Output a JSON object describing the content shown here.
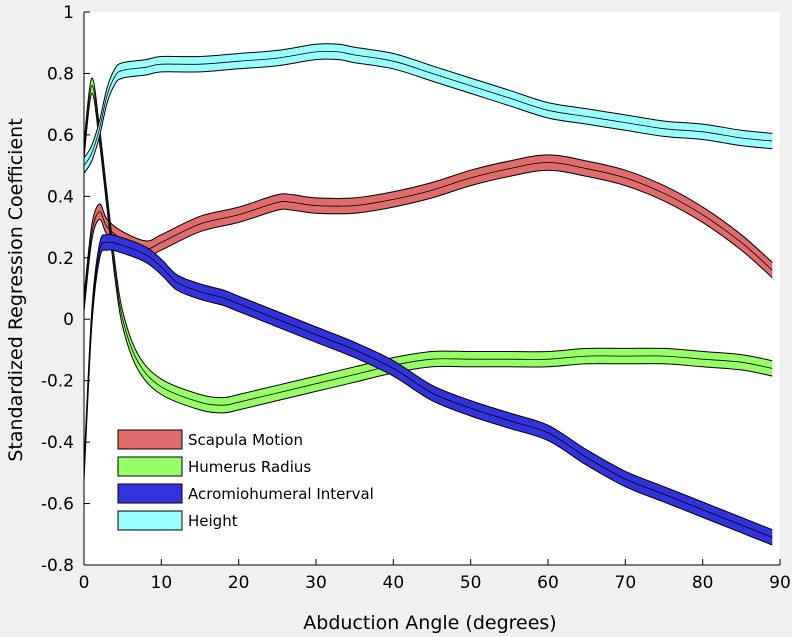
{
  "chart_data": {
    "type": "line",
    "title": "",
    "xlabel": "Abduction Angle (degrees)",
    "ylabel": "Standardized Regression Coefficient",
    "xlim": [
      0,
      90
    ],
    "ylim": [
      -0.8,
      1.0
    ],
    "xticks": [
      0,
      10,
      20,
      30,
      40,
      50,
      60,
      70,
      80,
      90
    ],
    "xtick_labels": [
      "0",
      "10",
      "20",
      "30",
      "40",
      "50",
      "60",
      "70",
      "80",
      "90"
    ],
    "yticks": [
      -0.8,
      -0.6,
      -0.4,
      -0.2,
      0,
      0.2,
      0.4,
      0.6,
      0.8,
      1.0
    ],
    "ytick_labels": [
      "-0.8",
      "-0.6",
      "-0.4",
      "-0.2",
      "0",
      "0.2",
      "0.4",
      "0.6",
      "0.8",
      "1"
    ],
    "grid": false,
    "legend_position": "bottom-left",
    "series": [
      {
        "name": "Scapula Motion",
        "color": "#e06c6c",
        "band_halfwidth": 0.025,
        "x": [
          0,
          1,
          2,
          3,
          5,
          8,
          10,
          15,
          20,
          25,
          27,
          30,
          35,
          40,
          45,
          50,
          55,
          60,
          65,
          70,
          75,
          80,
          85,
          89
        ],
        "y": [
          0.05,
          0.28,
          0.35,
          0.3,
          0.26,
          0.23,
          0.25,
          0.31,
          0.34,
          0.38,
          0.38,
          0.37,
          0.37,
          0.39,
          0.42,
          0.46,
          0.49,
          0.51,
          0.49,
          0.46,
          0.41,
          0.34,
          0.25,
          0.16
        ]
      },
      {
        "name": "Humerus Radius",
        "color": "#99ff66",
        "band_halfwidth": 0.025,
        "x": [
          0,
          1,
          2,
          3,
          4,
          5,
          7,
          10,
          15,
          18,
          20,
          25,
          30,
          35,
          40,
          45,
          50,
          55,
          60,
          65,
          70,
          75,
          80,
          85,
          89
        ],
        "y": [
          0.55,
          0.76,
          0.6,
          0.38,
          0.16,
          0.0,
          -0.14,
          -0.22,
          -0.27,
          -0.28,
          -0.27,
          -0.24,
          -0.21,
          -0.18,
          -0.15,
          -0.13,
          -0.13,
          -0.13,
          -0.13,
          -0.12,
          -0.12,
          -0.12,
          -0.13,
          -0.14,
          -0.16
        ]
      },
      {
        "name": "Acromiohumeral Interval",
        "color": "#3333dd",
        "band_halfwidth": 0.025,
        "x": [
          0,
          1,
          2,
          3,
          5,
          8,
          10,
          12,
          15,
          18,
          20,
          25,
          30,
          35,
          40,
          45,
          50,
          55,
          60,
          65,
          70,
          75,
          80,
          85,
          89
        ],
        "y": [
          -0.5,
          0.0,
          0.22,
          0.25,
          0.24,
          0.21,
          0.17,
          0.12,
          0.09,
          0.07,
          0.05,
          0.0,
          -0.05,
          -0.1,
          -0.16,
          -0.24,
          -0.29,
          -0.33,
          -0.37,
          -0.45,
          -0.52,
          -0.57,
          -0.62,
          -0.67,
          -0.71
        ]
      },
      {
        "name": "Height",
        "color": "#99ffff",
        "band_halfwidth": 0.025,
        "x": [
          0,
          1,
          2,
          3,
          4,
          5,
          8,
          10,
          15,
          20,
          25,
          30,
          33,
          35,
          40,
          45,
          50,
          55,
          60,
          65,
          70,
          75,
          80,
          85,
          89
        ],
        "y": [
          0.5,
          0.54,
          0.62,
          0.73,
          0.79,
          0.81,
          0.82,
          0.83,
          0.83,
          0.84,
          0.85,
          0.87,
          0.87,
          0.86,
          0.84,
          0.8,
          0.76,
          0.72,
          0.68,
          0.66,
          0.64,
          0.62,
          0.61,
          0.59,
          0.58
        ]
      }
    ]
  }
}
